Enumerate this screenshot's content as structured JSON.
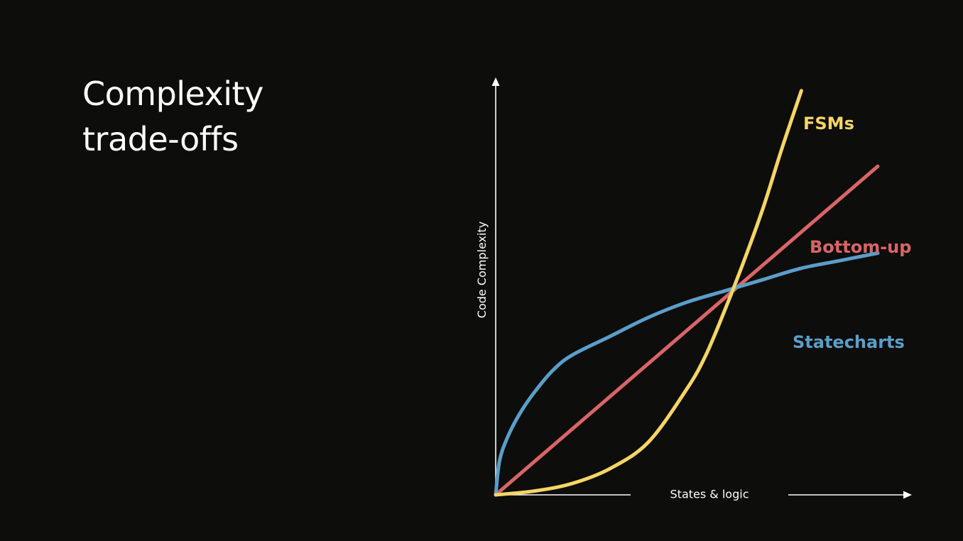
{
  "slide": {
    "title_lines": [
      "Complexity",
      "trade-offs"
    ]
  },
  "colors": {
    "background": "#0d0d0c",
    "axis": "#ffffff",
    "title": "#ffffff"
  },
  "chart_data": {
    "type": "line",
    "title": "",
    "xlabel": "States & logic",
    "ylabel": "Code Complexity",
    "xlim": [
      0,
      100
    ],
    "ylim": [
      0,
      100
    ],
    "grid": false,
    "legend": "inline labels at right end of each line",
    "series": [
      {
        "name": "FSMs",
        "color": "#f5d565",
        "x": [
          0,
          10,
          20,
          30,
          40,
          50,
          55,
          60,
          65,
          70,
          75,
          80
        ],
        "y": [
          0,
          1,
          3,
          7,
          14,
          28,
          37,
          49,
          62,
          76,
          92,
          107
        ]
      },
      {
        "name": "Bottom-up",
        "color": "#d96566",
        "x": [
          0,
          100
        ],
        "y": [
          0,
          87
        ]
      },
      {
        "name": "Statecharts",
        "color": "#5a9ec9",
        "x": [
          0,
          1,
          3,
          6,
          10,
          15,
          20,
          30,
          40,
          50,
          60,
          70,
          80,
          90,
          100
        ],
        "y": [
          0,
          9,
          15,
          21,
          27,
          33,
          37,
          42,
          47,
          51,
          54,
          57,
          60,
          62,
          64
        ]
      }
    ]
  }
}
